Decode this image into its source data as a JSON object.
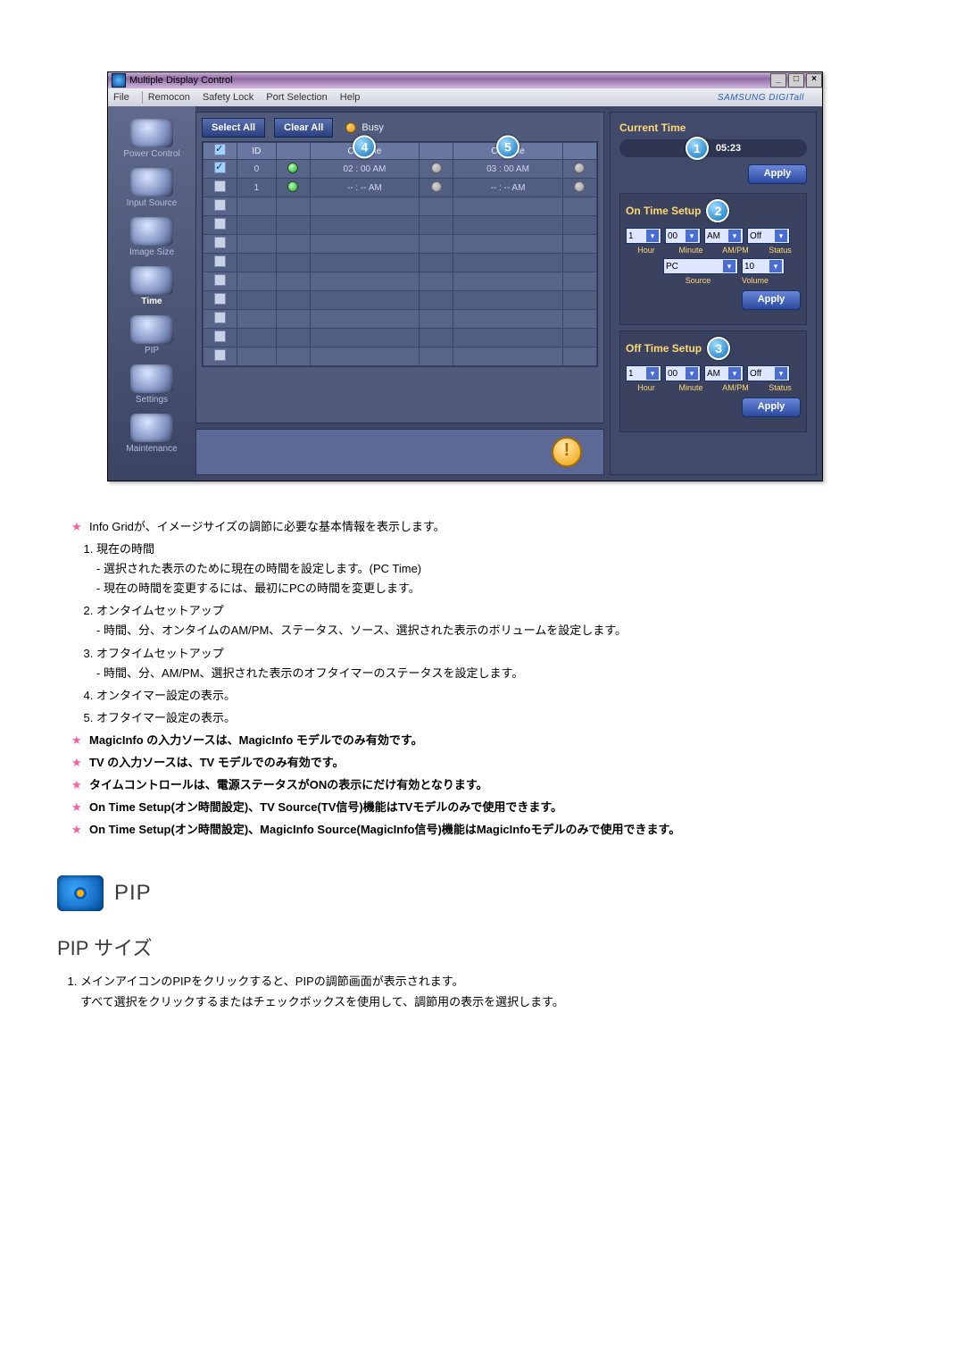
{
  "app": {
    "title": "Multiple Display Control",
    "brand": "SAMSUNG DIGITall",
    "menus": [
      "File",
      "Remocon",
      "Safety Lock",
      "Port Selection",
      "Help"
    ],
    "sidebar": [
      {
        "label": "Power Control"
      },
      {
        "label": "Input Source"
      },
      {
        "label": "Image Size"
      },
      {
        "label": "Time",
        "active": true
      },
      {
        "label": "PIP"
      },
      {
        "label": "Settings"
      },
      {
        "label": "Maintenance"
      }
    ],
    "toolbar": {
      "selectAll": "Select All",
      "clearAll": "Clear All",
      "busy": "Busy"
    },
    "columns": {
      "chk": "✓",
      "id": "ID",
      "pwr": "",
      "onTime": "On Time",
      "s1": "",
      "offTime": "Off Time",
      "s2": ""
    },
    "callouts": {
      "onTimeCol": "4",
      "offTimeCol": "5",
      "currentTime": "1",
      "onSetup": "2",
      "offSetup": "3"
    },
    "rows": [
      {
        "chk": true,
        "id": "0",
        "pwr": true,
        "onTime": "02 : 00 AM",
        "s1": "dim",
        "offTime": "03 : 00 AM",
        "s2": "dim"
      },
      {
        "chk": false,
        "id": "1",
        "pwr": true,
        "onTime": "-- : -- AM",
        "s1": "dim",
        "offTime": "-- : -- AM",
        "s2": "dim"
      },
      {
        "chk": false
      },
      {
        "chk": false
      },
      {
        "chk": false
      },
      {
        "chk": false
      },
      {
        "chk": false
      },
      {
        "chk": false
      },
      {
        "chk": false
      },
      {
        "chk": false
      },
      {
        "chk": false
      }
    ],
    "panel": {
      "currentTimeLabel": "Current Time",
      "currentTimeValue": "05:23",
      "apply": "Apply",
      "onSetup": {
        "title": "On Time Setup",
        "hour": "1",
        "minute": "00",
        "ampm": "AM",
        "status": "Off",
        "hourLbl": "Hour",
        "minuteLbl": "Minute",
        "ampmLbl": "AM/PM",
        "statusLbl": "Status",
        "source": "PC",
        "volume": "10",
        "sourceLbl": "Source",
        "volumeLbl": "Volume"
      },
      "offSetup": {
        "title": "Off Time Setup",
        "hour": "1",
        "minute": "00",
        "ampm": "AM",
        "status": "Off",
        "hourLbl": "Hour",
        "minuteLbl": "Minute",
        "ampmLbl": "AM/PM",
        "statusLbl": "Status"
      }
    }
  },
  "doc": {
    "star1": "Info Gridが、イメージサイズの調節に必要な基本情報を表示します。",
    "n1": "現在の時間",
    "n1a": "- 選択された表示のために現在の時間を設定します。(PC Time)",
    "n1b": "- 現在の時間を変更するには、最初にPCの時間を変更します。",
    "n2": "オンタイムセットアップ",
    "n2a": "- 時間、分、オンタイムのAM/PM、ステータス、ソース、選択された表示のボリュームを設定します。",
    "n3": "オフタイムセットアップ",
    "n3a": "- 時間、分、AM/PM、選択された表示のオフタイマーのステータスを設定します。",
    "n4": "オンタイマー設定の表示。",
    "n5": "オフタイマー設定の表示。",
    "star2": "MagicInfo の入力ソースは、MagicInfo モデルでのみ有効です。",
    "star3": "TV の入力ソースは、TV モデルでのみ有効です。",
    "star4": "タイムコントロールは、電源ステータスがONの表示にだけ有効となります。",
    "star5": "On Time Setup(オン時間設定)、TV Source(TV信号)機能はTVモデルのみで使用できます。",
    "star6": "On Time Setup(オン時間設定)、MagicInfo Source(MagicInfo信号)機能はMagicInfoモデルのみで使用できます。"
  },
  "pip": {
    "heading": "PIP",
    "sub": "PIP サイズ",
    "step1": "メインアイコンのPIPをクリックすると、PIPの調節画面が表示されます。",
    "step1b": "すべて選択をクリックするまたはチェックボックスを使用して、調節用の表示を選択します。"
  }
}
